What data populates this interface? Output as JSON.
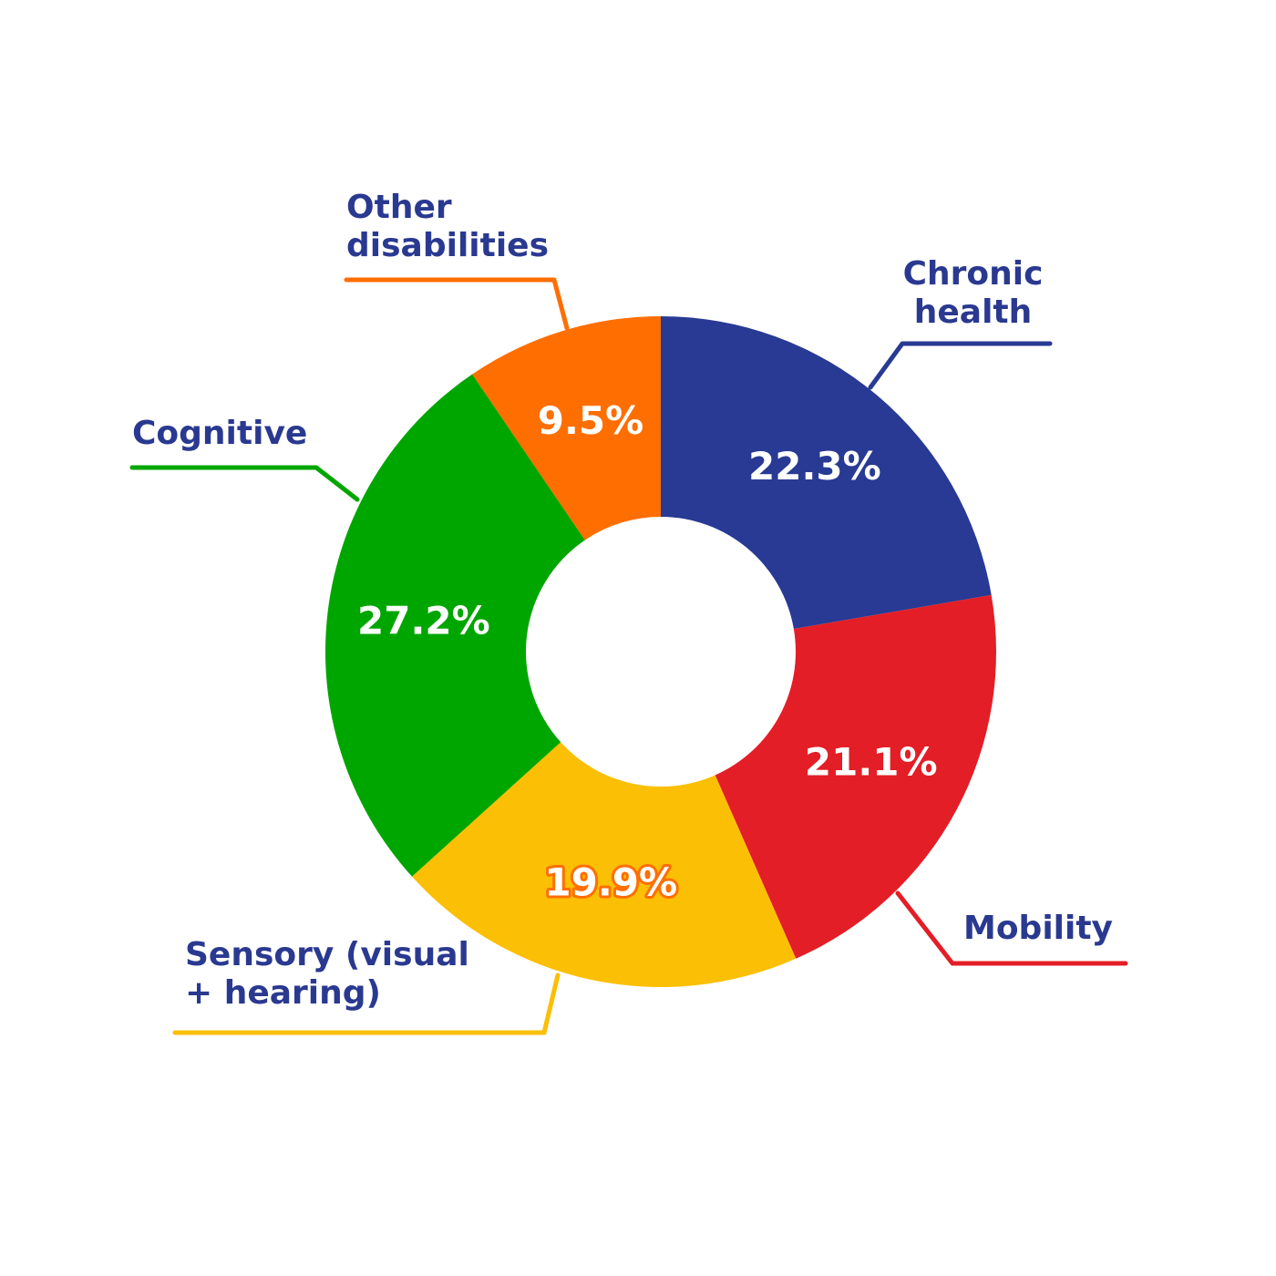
{
  "chart_data": {
    "type": "donut",
    "categories": [
      "Chronic health",
      "Mobility",
      "Sensory (visual + hearing)",
      "Cognitive",
      "Other disabilities"
    ],
    "values": [
      22.3,
      21.1,
      19.9,
      27.2,
      9.5
    ],
    "value_labels": [
      "22.3%",
      "21.1%",
      "19.9%",
      "27.2%",
      "9.5%"
    ],
    "colors": [
      "#283a93",
      "#e31e26",
      "#fbbf05",
      "#00a600",
      "#ff6e00"
    ]
  }
}
